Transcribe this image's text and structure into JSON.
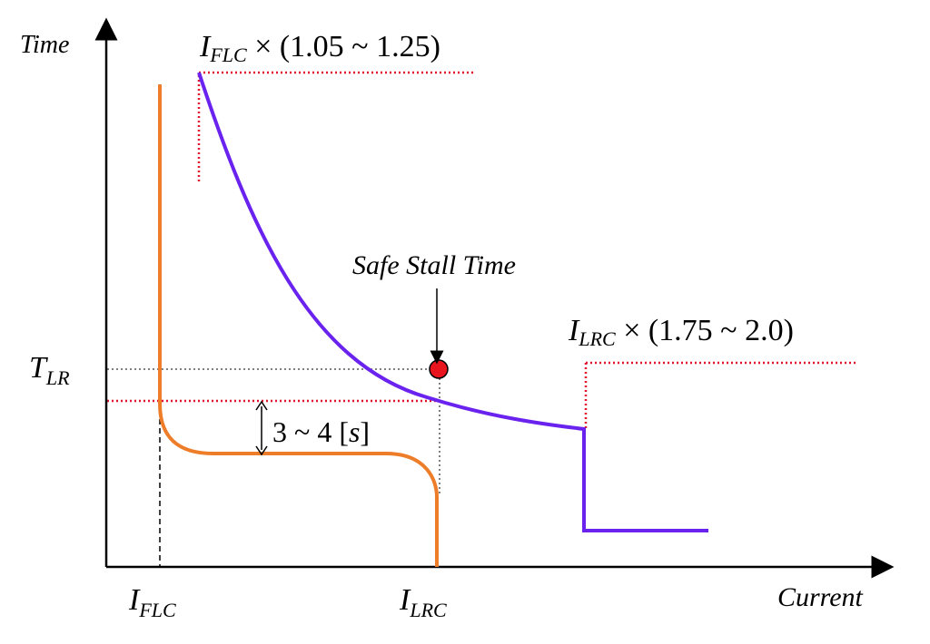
{
  "axes": {
    "y_label": "Time",
    "x_label": "Current"
  },
  "labels": {
    "i_flc_factor": {
      "sym": "I",
      "sub": "FLC",
      "text": " × (1.05 ~ 1.25)"
    },
    "i_lrc_factor": {
      "sym": "I",
      "sub": "LRC",
      "text": " × (1.75 ~ 2.0)"
    },
    "safe_stall": "Safe Stall Time",
    "t_lr": {
      "sym": "T",
      "sub": "LR"
    },
    "gap": {
      "pre": "3 ~ 4 [",
      "unit": "s",
      "post": "]"
    },
    "x_tick_flc": {
      "sym": "I",
      "sub": "FLC"
    },
    "x_tick_lrc": {
      "sym": "I",
      "sub": "LRC"
    }
  },
  "colors": {
    "motor_curve": "#ee7d2a",
    "relay_curve": "#6a22ee",
    "limit_lines": "#e0142a",
    "stall_point": "#e8141e",
    "guides": "#555555",
    "axes": "#000000"
  }
}
